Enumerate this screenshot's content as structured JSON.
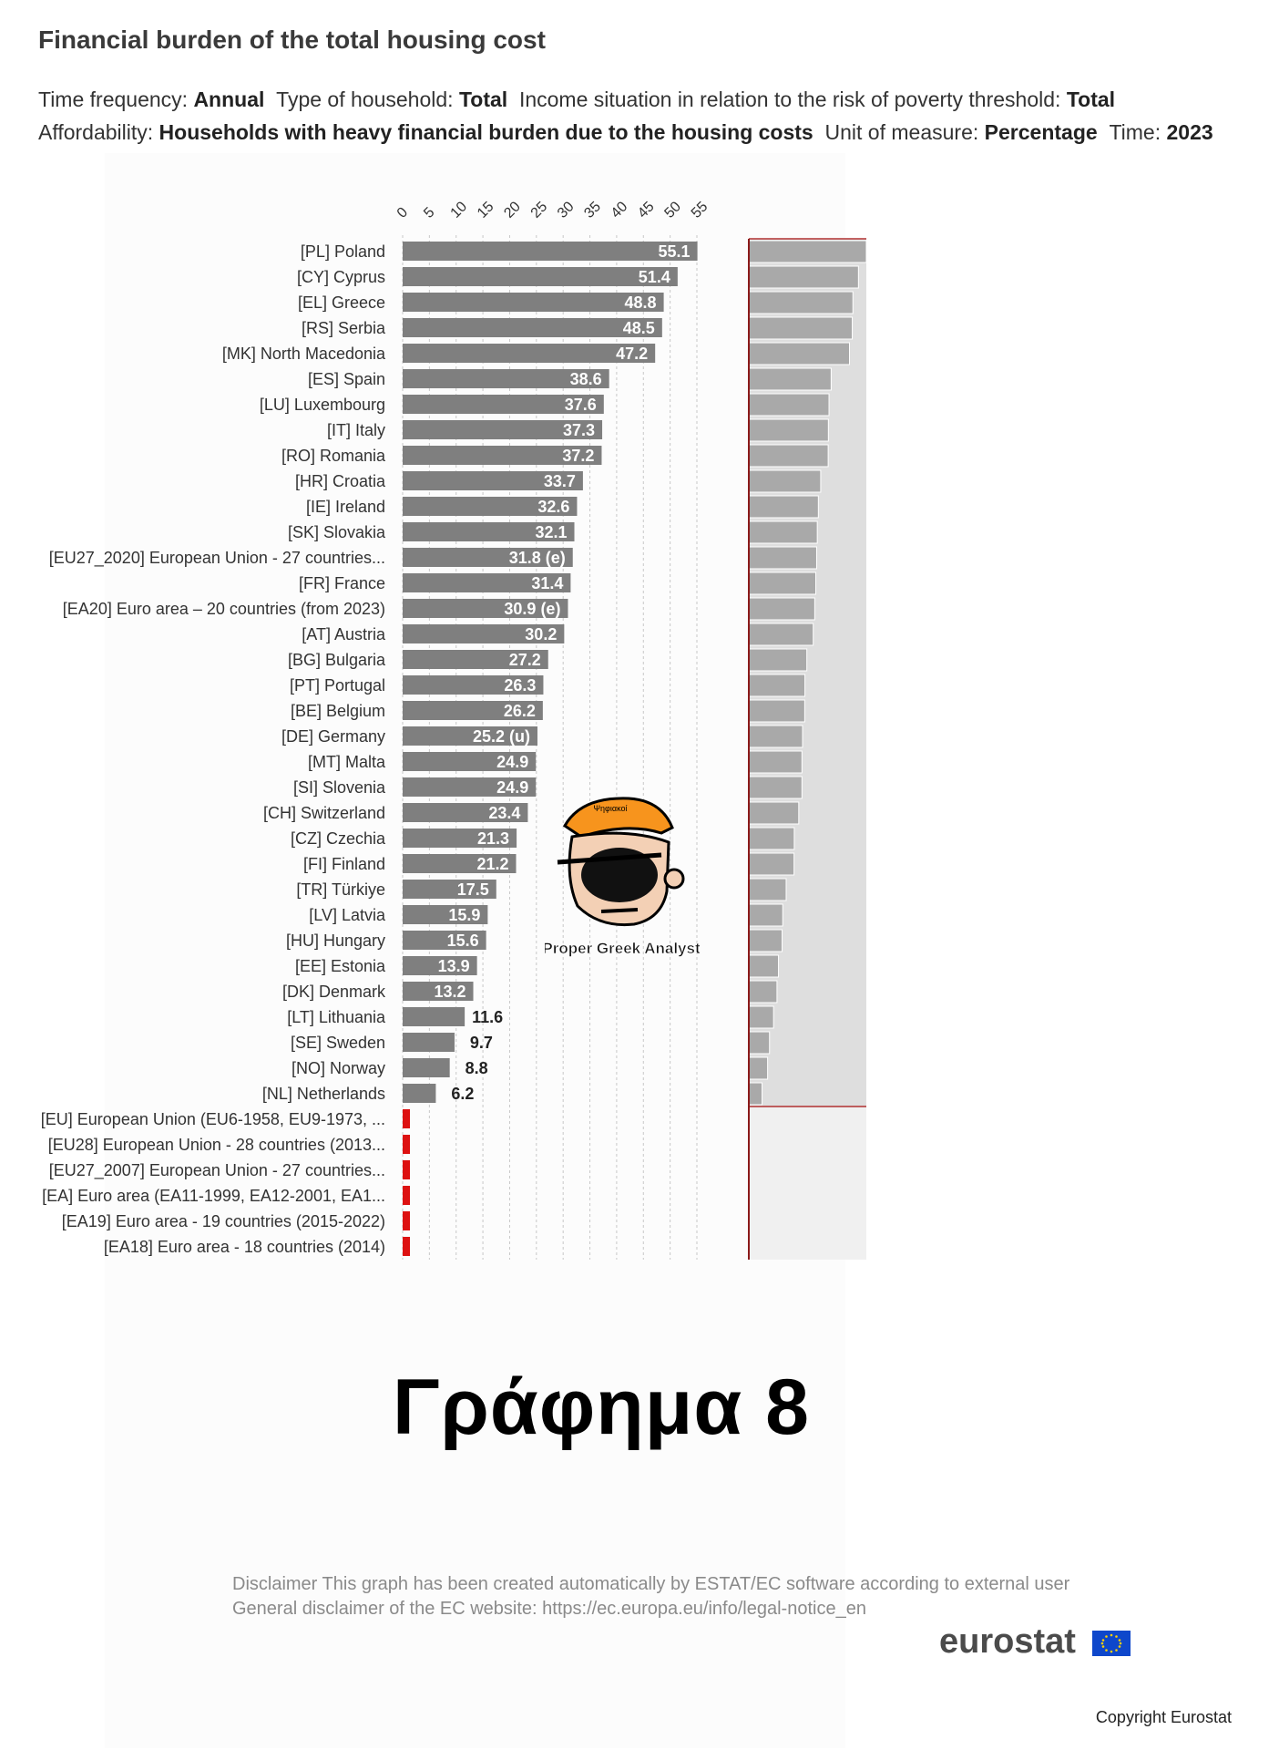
{
  "title": "Financial burden of the total housing cost",
  "meta": {
    "line1": [
      {
        "k": "Time frequency: ",
        "v": "Annual"
      },
      {
        "k": "Type of household: ",
        "v": "Total"
      },
      {
        "k": "Income situation in relation to the risk of poverty threshold: ",
        "v": "Total"
      }
    ],
    "line2": [
      {
        "k": "Affordability: ",
        "v": "Households with heavy financial burden due to the housing costs"
      },
      {
        "k": "Unit of measure: ",
        "v": "Percentage"
      },
      {
        "k": "Time: ",
        "v": "2023"
      }
    ]
  },
  "chart_data": {
    "type": "bar",
    "orientation": "horizontal",
    "xlim": [
      0,
      55
    ],
    "ticks": [
      0,
      5,
      10,
      15,
      20,
      25,
      30,
      35,
      40,
      45,
      50,
      55
    ],
    "grid": true,
    "bar_color": "#7f7f7f",
    "missing_color": "#dd1111",
    "categories": [
      "[PL] Poland",
      "[CY] Cyprus",
      "[EL] Greece",
      "[RS] Serbia",
      "[MK] North Macedonia",
      "[ES] Spain",
      "[LU] Luxembourg",
      "[IT] Italy",
      "[RO] Romania",
      "[HR] Croatia",
      "[IE] Ireland",
      "[SK] Slovakia",
      "[EU27_2020] European Union - 27 countries...",
      "[FR] France",
      "[EA20] Euro area – 20 countries (from 2023)",
      "[AT] Austria",
      "[BG] Bulgaria",
      "[PT] Portugal",
      "[BE] Belgium",
      "[DE] Germany",
      "[MT] Malta",
      "[SI] Slovenia",
      "[CH] Switzerland",
      "[CZ] Czechia",
      "[FI] Finland",
      "[TR] Türkiye",
      "[LV] Latvia",
      "[HU] Hungary",
      "[EE] Estonia",
      "[DK] Denmark",
      "[LT] Lithuania",
      "[SE] Sweden",
      "[NO] Norway",
      "[NL] Netherlands",
      "[EU] European Union (EU6-1958, EU9-1973, ...",
      "[EU28] European Union - 28 countries (2013...",
      "[EU27_2007] European Union - 27 countries...",
      "[EA] Euro area (EA11-1999, EA12-2001, EA1...",
      "[EA19] Euro area - 19 countries  (2015-2022)",
      "[EA18] Euro area - 18 countries (2014)"
    ],
    "values": [
      55.1,
      51.4,
      48.8,
      48.5,
      47.2,
      38.6,
      37.6,
      37.3,
      37.2,
      33.7,
      32.6,
      32.1,
      31.8,
      31.4,
      30.9,
      30.2,
      27.2,
      26.3,
      26.2,
      25.2,
      24.9,
      24.9,
      23.4,
      21.3,
      21.2,
      17.5,
      15.9,
      15.6,
      13.9,
      13.2,
      11.6,
      9.7,
      8.8,
      6.2,
      null,
      null,
      null,
      null,
      null,
      null
    ],
    "value_labels": [
      "55.1",
      "51.4",
      "48.8",
      "48.5",
      "47.2",
      "38.6",
      "37.6",
      "37.3",
      "37.2",
      "33.7",
      "32.6",
      "32.1",
      "31.8 (e)",
      "31.4",
      "30.9 (e)",
      "30.2",
      "27.2",
      "26.3",
      "26.2",
      "25.2 (u)",
      "24.9",
      "24.9",
      "23.4",
      "21.3",
      "21.2",
      "17.5",
      "15.9",
      "15.6",
      "13.9",
      "13.2",
      "11.6",
      "9.7",
      "8.8",
      "6.2",
      "",
      "",
      "",
      "",
      "",
      ""
    ]
  },
  "mascot_text": "Proper Greek Analyst",
  "mascot_cap_text": "Ψηφιακοί",
  "caption": "Γράφημα 8",
  "disclaimer": {
    "line1": "Disclaimer This graph has been created automatically by ESTAT/EC software according to external user",
    "line2": "General disclaimer of the EC website: https://ec.europa.eu/info/legal-notice_en"
  },
  "logo": "eurostat",
  "copyright": "Copyright Eurostat"
}
